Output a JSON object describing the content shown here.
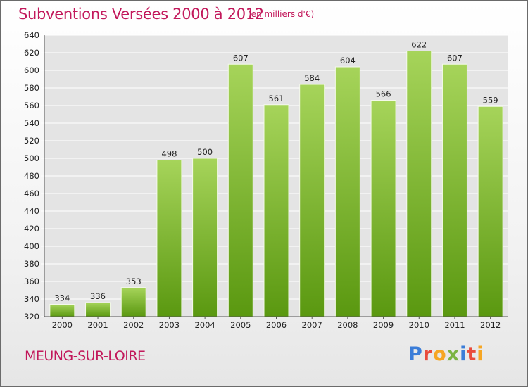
{
  "header": {
    "title": "Subventions Versées 2000 à 2012",
    "unit": "(en milliers d'€)"
  },
  "footer": {
    "commune": "MEUNG-SUR-LOIRE",
    "logo": "Proxiti"
  },
  "colors": {
    "title": "#c2185b",
    "bar_top": "#9ccc4f",
    "bar_bottom": "#5c9a12",
    "grid": "#ffffff",
    "plot_bg": "#e6e6e6"
  },
  "chart_data": {
    "type": "bar",
    "categories": [
      "2000",
      "2001",
      "2002",
      "2003",
      "2004",
      "2005",
      "2006",
      "2007",
      "2008",
      "2009",
      "2010",
      "2011",
      "2012"
    ],
    "values": [
      334,
      336,
      353,
      498,
      500,
      607,
      561,
      584,
      604,
      566,
      622,
      607,
      559
    ],
    "title": "Subventions Versées 2000 à 2012",
    "ylim": [
      320,
      640
    ],
    "yticks": [
      320,
      340,
      360,
      380,
      400,
      420,
      440,
      460,
      480,
      500,
      520,
      540,
      560,
      580,
      600,
      620,
      640
    ],
    "grid": true,
    "data_labels": true
  }
}
